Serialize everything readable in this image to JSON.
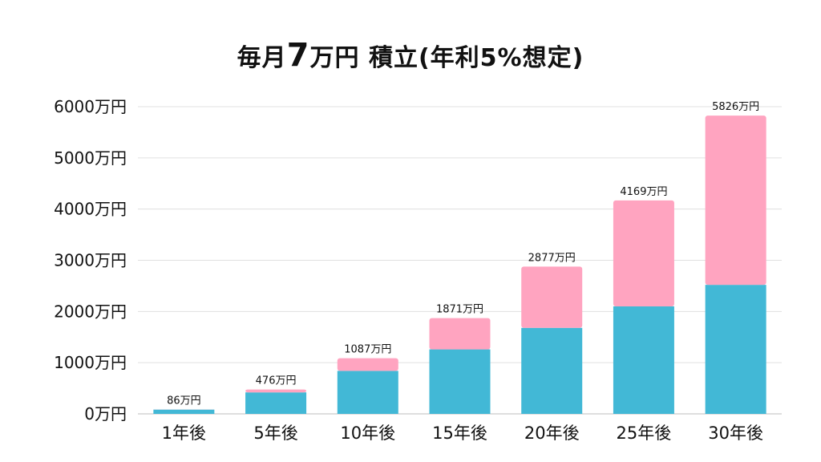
{
  "title": {
    "prefix": "毎月",
    "amount": "7",
    "suffix": "万円 積立(年利5%想定)"
  },
  "chart_data": {
    "type": "bar",
    "stacked": true,
    "categories": [
      "1年後",
      "5年後",
      "10年後",
      "15年後",
      "20年後",
      "25年後",
      "30年後"
    ],
    "series": [
      {
        "values": [
          84,
          420,
          840,
          1260,
          1680,
          2100,
          2520
        ],
        "color": "#42b8d6"
      },
      {
        "values": [
          2,
          56,
          247,
          611,
          1197,
          2069,
          3306
        ],
        "color": "#ffa4c0"
      }
    ],
    "totals": [
      86,
      476,
      1087,
      1871,
      2877,
      4169,
      5826
    ],
    "total_labels": [
      "86万円",
      "476万円",
      "1087万円",
      "1871万円",
      "2877万円",
      "4169万円",
      "5826万円"
    ],
    "y_ticks": [
      0,
      1000,
      2000,
      3000,
      4000,
      5000,
      6000
    ],
    "y_tick_labels": [
      "0万円",
      "1000万円",
      "2000万円",
      "3000万円",
      "4000万円",
      "5000万円",
      "6000万円"
    ],
    "ylim": [
      0,
      6000
    ],
    "grid": true,
    "legend": "none"
  }
}
